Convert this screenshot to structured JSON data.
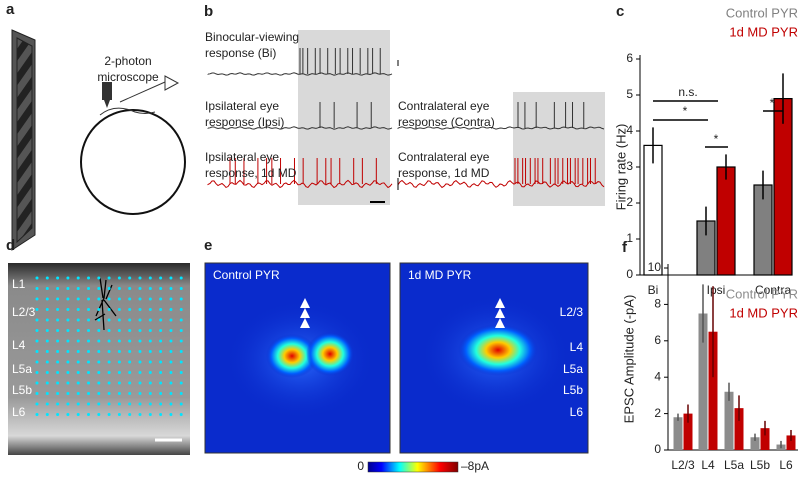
{
  "panel_labels": [
    "a",
    "b",
    "c",
    "d",
    "e",
    "f"
  ],
  "panel_a": {
    "label": [
      "2-photon",
      "microscope"
    ]
  },
  "panel_b": {
    "traces": [
      [
        "Binocular-viewing",
        "response (Bi)"
      ],
      [
        "Ipsilateral eye",
        "response (Ipsi)"
      ],
      [
        "Contralateral eye",
        "response (Contra)"
      ],
      [
        "Ipsilateral eye",
        "response, 1d MD"
      ],
      [
        "Contralateral eye",
        "response, 1d MD"
      ]
    ]
  },
  "panel_d": {
    "layers": [
      "L1",
      "L2/3",
      "L4",
      "L5a",
      "L5b",
      "L6"
    ]
  },
  "panel_e": {
    "maps": [
      "Control PYR",
      "1d MD PYR"
    ],
    "layers": [
      "L2/3",
      "L4",
      "L5a",
      "L5b",
      "L6"
    ],
    "colorbar": [
      "0",
      "–8pA"
    ]
  },
  "chart_data": [
    {
      "type": "bar",
      "ylabel": "Firing rate (Hz)",
      "categories": [
        "Bi",
        "Ipsi",
        "Contra"
      ],
      "series": [
        {
          "name": "Control PYR",
          "color": "#808080",
          "bar_colors": [
            "#ffffff",
            "#808080",
            "#808080"
          ],
          "values": [
            3.6,
            1.5,
            2.5
          ],
          "errors": [
            0.5,
            0.4,
            0.4
          ]
        },
        {
          "name": "1d MD PYR",
          "color": "#c00000",
          "values": [
            null,
            3.0,
            4.9
          ],
          "errors": [
            null,
            0.35,
            0.7
          ]
        }
      ],
      "ylim": [
        0,
        6
      ],
      "yticks": [
        0,
        1,
        2,
        3,
        4,
        5,
        6
      ],
      "annotations": [
        "n.s.",
        "*",
        "*",
        "*"
      ]
    },
    {
      "type": "bar",
      "ylabel": "EPSC Amplitude (-pA)",
      "categories": [
        "L2/3",
        "L4",
        "L5a",
        "L5b",
        "L6"
      ],
      "series": [
        {
          "name": "Control PYR",
          "color": "#8c8c8c",
          "values": [
            1.8,
            7.5,
            3.2,
            0.7,
            0.3
          ],
          "errors": [
            0.2,
            1.6,
            0.5,
            0.2,
            0.2
          ]
        },
        {
          "name": "1d MD PYR",
          "color": "#c00000",
          "values": [
            2.0,
            6.5,
            2.3,
            1.2,
            0.8
          ],
          "errors": [
            0.5,
            2.5,
            0.7,
            0.4,
            0.3
          ]
        }
      ],
      "ylim": [
        0,
        10
      ],
      "yticks": [
        0,
        2,
        4,
        6,
        8,
        10
      ]
    }
  ]
}
